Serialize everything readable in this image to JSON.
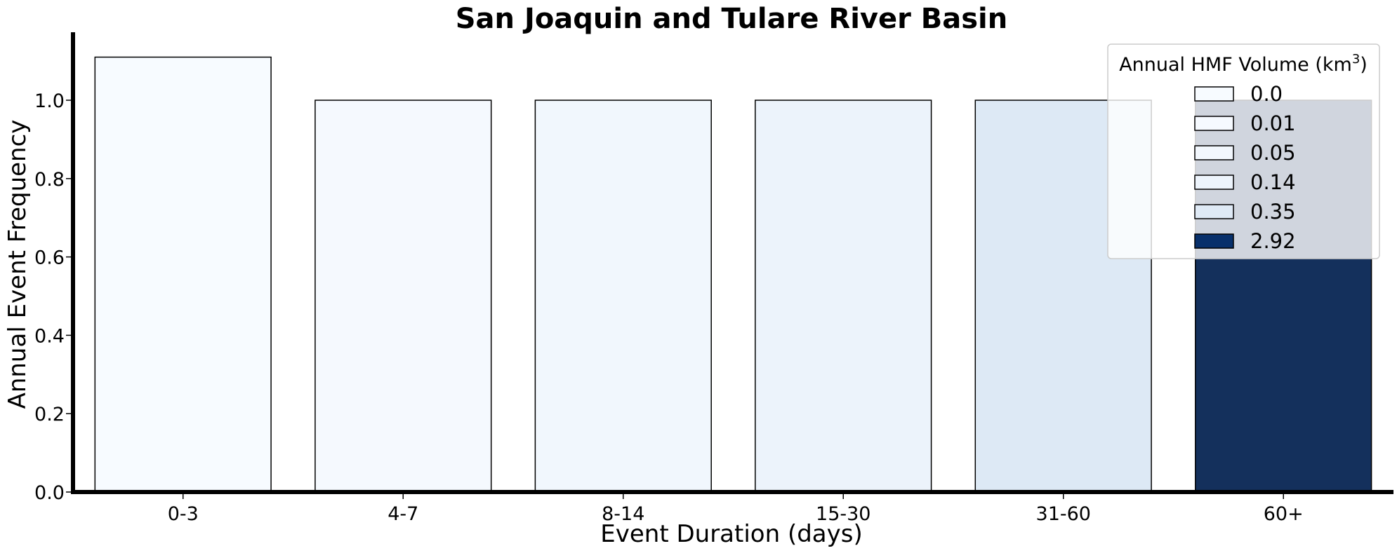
{
  "chart_data": {
    "type": "bar",
    "title": "San Joaquin and Tulare River Basin",
    "xlabel": "Event Duration (days)",
    "ylabel": "Annual Event Frequency",
    "categories": [
      "0-3",
      "4-7",
      "8-14",
      "15-30",
      "31-60",
      "60+"
    ],
    "values": [
      1.11,
      1.0,
      1.0,
      1.0,
      1.0,
      1.0
    ],
    "colors": [
      "#f7fbff",
      "#f5f9fe",
      "#f1f7fd",
      "#ecf3fb",
      "#dde9f5",
      "#14305c"
    ],
    "ylim": [
      0,
      1.18
    ],
    "yticks": [
      "0.0",
      "0.2",
      "0.4",
      "0.6",
      "0.8",
      "1.0"
    ],
    "grid": false,
    "legend": {
      "title_prefix": "Annual HMF Volume (km",
      "title_sup": "3",
      "title_suffix": ")",
      "placement": "top-right",
      "entries": [
        {
          "label": "0.0",
          "color": "#f7fbff"
        },
        {
          "label": "0.01",
          "color": "#f6faff"
        },
        {
          "label": "0.05",
          "color": "#f2f7fd"
        },
        {
          "label": "0.14",
          "color": "#edf4fc"
        },
        {
          "label": "0.35",
          "color": "#dfeaf6"
        },
        {
          "label": "2.92",
          "color": "#08306b"
        }
      ]
    }
  }
}
